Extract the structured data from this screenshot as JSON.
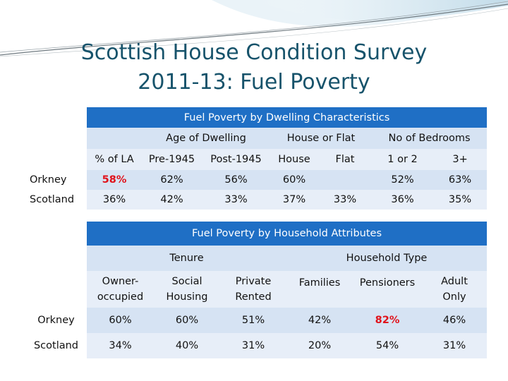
{
  "slide": {
    "title_line1": "Scottish House Condition Survey",
    "title_line2": "2011-13: Fuel Poverty"
  },
  "table1": {
    "title": "Fuel Poverty by Dwelling Characteristics",
    "groups": {
      "age": "Age of Dwelling",
      "house_flat": "House or Flat",
      "bedrooms": "No of Bedrooms"
    },
    "columns": [
      "% of LA",
      "Pre-1945",
      "Post-1945",
      "House",
      "Flat",
      "1 or 2",
      "3+"
    ],
    "rows": [
      {
        "label": "Orkney",
        "values": [
          "58%",
          "62%",
          "56%",
          "60%",
          "",
          "52%",
          "63%"
        ],
        "highlight_index": 0
      },
      {
        "label": "Scotland",
        "values": [
          "36%",
          "42%",
          "33%",
          "37%",
          "33%",
          "36%",
          "35%"
        ]
      }
    ]
  },
  "table2": {
    "title": "Fuel Poverty by Household Attributes",
    "groups": {
      "tenure": "Tenure",
      "household_type": "Household Type"
    },
    "columns": [
      {
        "line1": "Owner-",
        "line2": "occupied"
      },
      {
        "line1": "Social",
        "line2": "Housing"
      },
      {
        "line1": "Private",
        "line2": "Rented"
      },
      {
        "line1": "Families",
        "line2": ""
      },
      {
        "line1": "Pensioners",
        "line2": ""
      },
      {
        "line1": "Adult",
        "line2": "Only"
      }
    ],
    "rows": [
      {
        "label": "Orkney",
        "values": [
          "60%",
          "60%",
          "51%",
          "42%",
          "82%",
          "46%"
        ],
        "highlight_index": 4
      },
      {
        "label": "Scotland",
        "values": [
          "34%",
          "40%",
          "31%",
          "20%",
          "54%",
          "31%"
        ]
      }
    ]
  },
  "colors": {
    "title": "#17536b",
    "header_blue": "#1f6fc5",
    "light_blue": "#d6e3f3",
    "highlight_red": "#e0121b"
  }
}
